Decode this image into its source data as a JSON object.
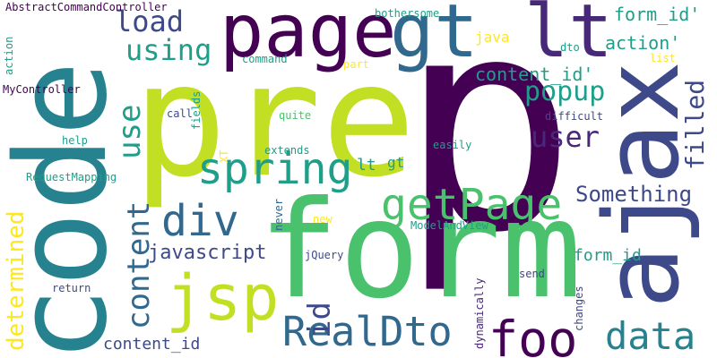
{
  "palette": [
    "#a0da39",
    "#440154",
    "#3e4989",
    "#31688e",
    "#26828e",
    "#1f9e89",
    "#35b779",
    "#4ac16d",
    "#fde725",
    "#c2df23",
    "#482878"
  ],
  "words": {
    "p": "p",
    "pre": "pre",
    "form": "form",
    "code": "code",
    "ajax": "ajax",
    "page": "page",
    "gt_top": "gt",
    "lt_top": "lt",
    "jsp": "jsp",
    "foo": "foo",
    "realdto": "RealDto",
    "getpage": "getPage",
    "spring": "spring",
    "div": "div",
    "data": "data",
    "user": "user",
    "using": "using",
    "load": "load",
    "popup": "popup",
    "content_v": "content",
    "id_v": "id",
    "use_v": "use",
    "filled_v": "filled",
    "determined_v": "determined",
    "something": "Something",
    "javascript": "javascript",
    "form_id_quote": "form_id'",
    "content_id_quote": "content_id'",
    "action_quote": "action'",
    "form_id": "form_id",
    "content_id": "content_id",
    "lt_small": "lt",
    "gt_small": "gt",
    "java": "java",
    "dto": "dto",
    "list": "list",
    "abstract": "AbstractCommandController",
    "bothersome": "bothersome",
    "command": "command",
    "part": "part",
    "mycontroller": "MyController",
    "action_v": "action",
    "call": "call",
    "fields_v": "fields",
    "quite": "quite",
    "difficult": "difficult",
    "help": "help",
    "extends": "extends",
    "easily": "easily",
    "xt_v": "XT",
    "requestmapping": "RequestMapping",
    "never_v": "never",
    "new": "new",
    "modelandview": "ModelAndView",
    "jquery": "jQuery",
    "send": "send",
    "return": "return",
    "changes_v": "changes",
    "dynamically_v": "dynamically"
  }
}
